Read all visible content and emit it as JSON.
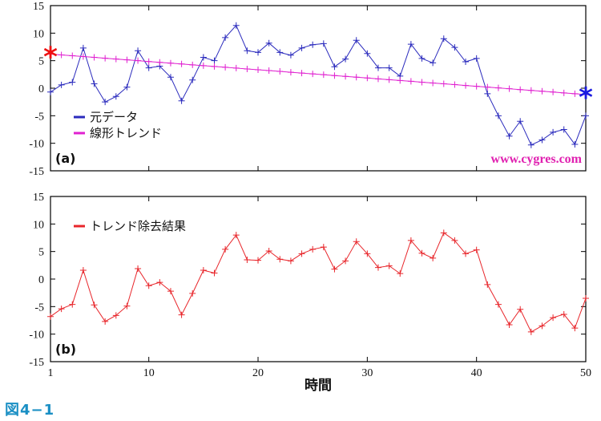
{
  "chart_data": [
    {
      "type": "line",
      "panel_label": "(a)",
      "x": [
        1,
        2,
        3,
        4,
        5,
        6,
        7,
        8,
        9,
        10,
        11,
        12,
        13,
        14,
        15,
        16,
        17,
        18,
        19,
        20,
        21,
        22,
        23,
        24,
        25,
        26,
        27,
        28,
        29,
        30,
        31,
        32,
        33,
        34,
        35,
        36,
        37,
        38,
        39,
        40,
        41,
        42,
        43,
        44,
        45,
        46,
        47,
        48,
        49,
        50
      ],
      "xlim": [
        1,
        50
      ],
      "ylim": [
        -15,
        15
      ],
      "xticks": [
        1,
        10,
        20,
        30,
        40,
        50
      ],
      "yticks": [
        -15,
        -10,
        -5,
        0,
        5,
        10,
        15
      ],
      "xlabel": "時間",
      "legend_position": "left",
      "watermark": "www.cygres.com",
      "series": [
        {
          "name": "元データ",
          "color": "#2b2bbd",
          "values": [
            -0.7,
            0.6,
            1.1,
            7.3,
            0.8,
            -2.5,
            -1.5,
            0.2,
            6.8,
            3.7,
            4.0,
            2.0,
            -2.3,
            1.5,
            5.6,
            5.0,
            9.2,
            11.4,
            6.8,
            6.5,
            8.2,
            6.5,
            6.0,
            7.3,
            7.9,
            8.1,
            3.9,
            5.3,
            8.7,
            6.3,
            3.7,
            3.7,
            2.2,
            8.0,
            5.4,
            4.6,
            9.0,
            7.4,
            4.8,
            5.4,
            -1.0,
            -5.0,
            -8.7,
            -6.0,
            -10.3,
            -9.4,
            -8.0,
            -7.5,
            -10.2,
            -5.0
          ],
          "markers": true
        },
        {
          "name": "線形トレンド",
          "color": "#e020d0",
          "values": [
            6.2,
            6.05,
            5.9,
            5.75,
            5.6,
            5.45,
            5.3,
            5.15,
            5.0,
            4.85,
            4.7,
            4.55,
            4.4,
            4.25,
            4.1,
            3.95,
            3.8,
            3.65,
            3.5,
            3.35,
            3.2,
            3.05,
            2.9,
            2.75,
            2.6,
            2.45,
            2.3,
            2.15,
            2.0,
            1.85,
            1.7,
            1.55,
            1.4,
            1.25,
            1.1,
            0.95,
            0.8,
            0.65,
            0.5,
            0.35,
            0.2,
            0.05,
            -0.1,
            -0.25,
            -0.4,
            -0.55,
            -0.7,
            -0.85,
            -1.0,
            -1.15
          ],
          "markers": true
        }
      ],
      "endpoint_markers": [
        {
          "glyph": "*",
          "color": "#ee1111",
          "x": 1,
          "y": 6.2
        },
        {
          "glyph": "*",
          "color": "#1a1ae0",
          "x": 50,
          "y": -1.15
        }
      ]
    },
    {
      "type": "line",
      "panel_label": "(b)",
      "x": [
        1,
        2,
        3,
        4,
        5,
        6,
        7,
        8,
        9,
        10,
        11,
        12,
        13,
        14,
        15,
        16,
        17,
        18,
        19,
        20,
        21,
        22,
        23,
        24,
        25,
        26,
        27,
        28,
        29,
        30,
        31,
        32,
        33,
        34,
        35,
        36,
        37,
        38,
        39,
        40,
        41,
        42,
        43,
        44,
        45,
        46,
        47,
        48,
        49,
        50
      ],
      "xlim": [
        1,
        50
      ],
      "ylim": [
        -15,
        15
      ],
      "xticks": [
        1,
        10,
        20,
        30,
        40,
        50
      ],
      "yticks": [
        -15,
        -10,
        -5,
        0,
        5,
        10,
        15
      ],
      "xlabel": "時間",
      "legend_position": "top-left",
      "series": [
        {
          "name": "トレンド除去結果",
          "color": "#e8262b",
          "values": [
            -6.8,
            -5.4,
            -4.6,
            1.6,
            -4.7,
            -7.7,
            -6.6,
            -4.9,
            1.9,
            -1.2,
            -0.6,
            -2.2,
            -6.5,
            -2.6,
            1.6,
            1.1,
            5.4,
            8.0,
            3.5,
            3.4,
            5.1,
            3.6,
            3.3,
            4.6,
            5.4,
            5.8,
            1.8,
            3.3,
            6.8,
            4.6,
            2.1,
            2.4,
            1.0,
            7.0,
            4.7,
            3.8,
            8.4,
            7.0,
            4.6,
            5.3,
            -1.0,
            -4.6,
            -8.3,
            -5.5,
            -9.6,
            -8.5,
            -7.0,
            -6.4,
            -8.9,
            -3.5
          ],
          "markers": true
        }
      ]
    }
  ],
  "figure_caption": "図4−1"
}
